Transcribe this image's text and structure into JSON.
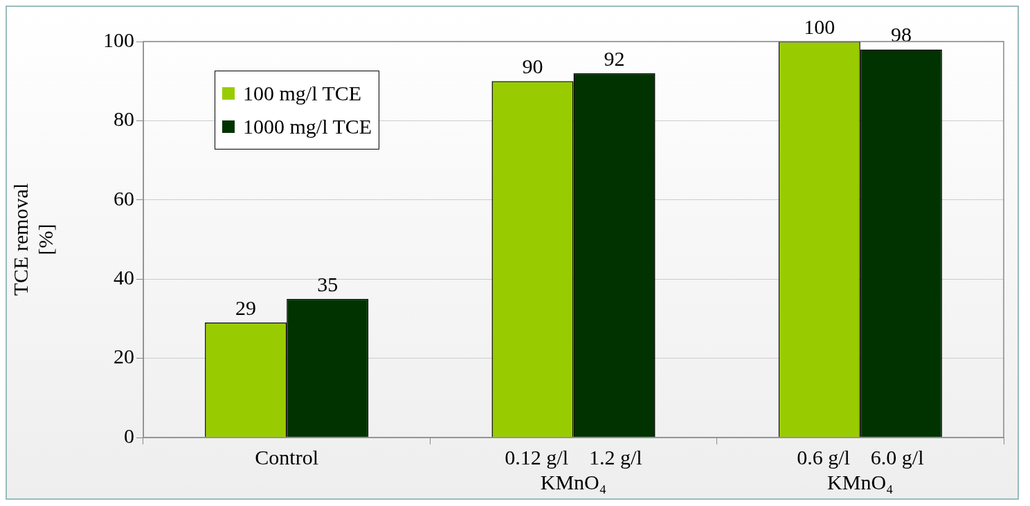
{
  "chart_data": {
    "type": "bar",
    "ylabel": "TCE removal\n[%]",
    "categories": [
      "Control",
      "0.12 g/l    1.2 g/l\nKMnO₄",
      "0.6 g/l    6.0 g/l\nKMnO₄"
    ],
    "series": [
      {
        "name": "100 mg/l TCE",
        "color": "#99cc00",
        "values": [
          29,
          90,
          100
        ]
      },
      {
        "name": "1000 mg/l TCE",
        "color": "#003300",
        "values": [
          35,
          92,
          98
        ]
      }
    ],
    "ylim": [
      0,
      100
    ],
    "yticks": [
      0,
      20,
      40,
      60,
      80,
      100
    ],
    "grid": "y",
    "legend": "top left",
    "data_labels": true
  }
}
